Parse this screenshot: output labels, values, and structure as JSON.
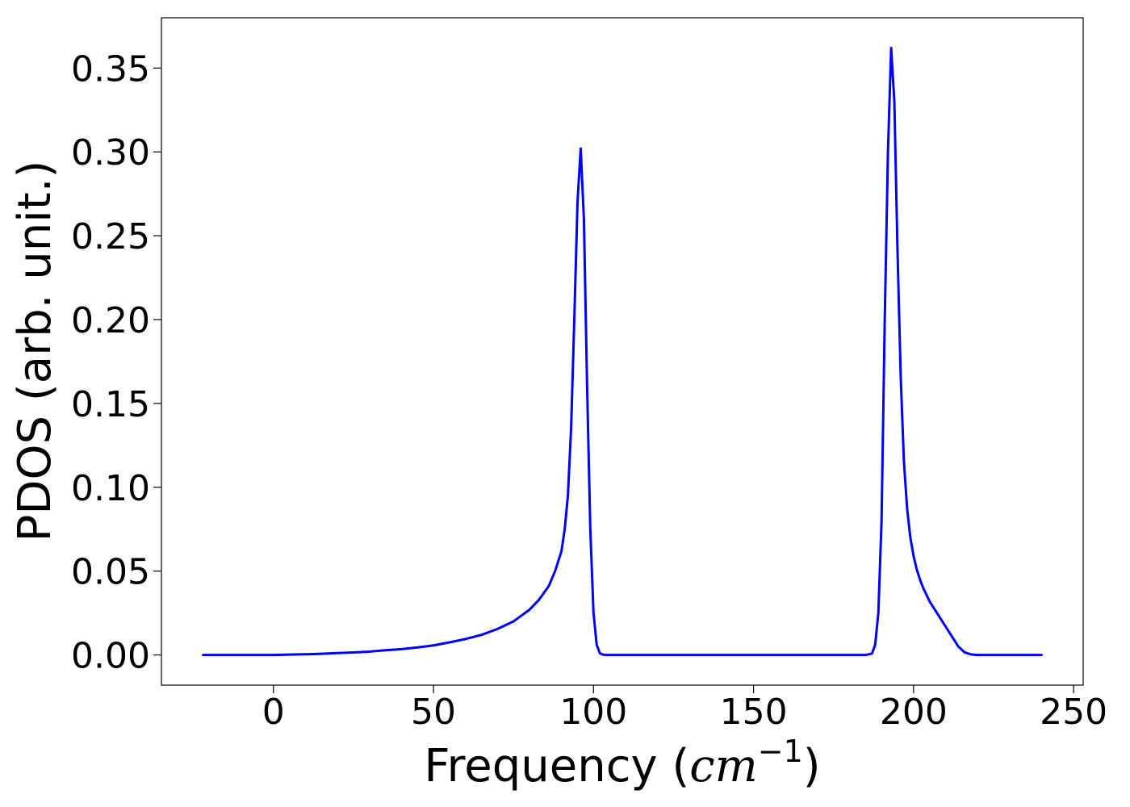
{
  "chart_data": {
    "type": "line",
    "title": "",
    "xlabel": "Frequency (cm⁻¹)",
    "xlabel_parts": {
      "prefix": "Frequency (",
      "unit_base": "cm",
      "unit_exp": "−1",
      "suffix": ")"
    },
    "ylabel": "PDOS (arb. unit.)",
    "xlim": [
      -35,
      253
    ],
    "ylim": [
      -0.018,
      0.38
    ],
    "xticks": [
      0,
      50,
      100,
      150,
      200,
      250
    ],
    "xtick_labels": [
      "0",
      "50",
      "100",
      "150",
      "200",
      "250"
    ],
    "yticks": [
      0.0,
      0.05,
      0.1,
      0.15,
      0.2,
      0.25,
      0.3,
      0.35
    ],
    "ytick_labels": [
      "0.00",
      "0.05",
      "0.10",
      "0.15",
      "0.20",
      "0.25",
      "0.30",
      "0.35"
    ],
    "grid": false,
    "legend": "none",
    "line_color": "#0000ff",
    "series": [
      {
        "x": [
          -22,
          0,
          5,
          10,
          15,
          20,
          25,
          30,
          35,
          40,
          45,
          50,
          55,
          60,
          65,
          70,
          75,
          80,
          83,
          86,
          88,
          90,
          91,
          92,
          93,
          94,
          95,
          96,
          97,
          98,
          99,
          100,
          101,
          102,
          103,
          104,
          106,
          110,
          150,
          180,
          185,
          187,
          188,
          189,
          190,
          191,
          192,
          193,
          194,
          195,
          196,
          197,
          198,
          199,
          200,
          201,
          202,
          203,
          204,
          205,
          206,
          208,
          210,
          212,
          214,
          216,
          218,
          220,
          222,
          225,
          240
        ],
        "y": [
          0,
          0,
          0.0002,
          0.0004,
          0.0007,
          0.0011,
          0.0015,
          0.002,
          0.0028,
          0.0035,
          0.0045,
          0.0057,
          0.0075,
          0.0095,
          0.012,
          0.0155,
          0.02,
          0.027,
          0.033,
          0.041,
          0.05,
          0.062,
          0.075,
          0.095,
          0.135,
          0.2,
          0.27,
          0.302,
          0.26,
          0.16,
          0.075,
          0.025,
          0.006,
          0.001,
          0.0002,
          0,
          0,
          0,
          0,
          0,
          0,
          0.0008,
          0.006,
          0.025,
          0.08,
          0.2,
          0.3,
          0.362,
          0.33,
          0.24,
          0.165,
          0.115,
          0.087,
          0.07,
          0.059,
          0.051,
          0.045,
          0.04,
          0.036,
          0.032,
          0.029,
          0.023,
          0.017,
          0.011,
          0.005,
          0.0015,
          0.0003,
          0,
          0,
          0,
          0
        ]
      }
    ]
  }
}
